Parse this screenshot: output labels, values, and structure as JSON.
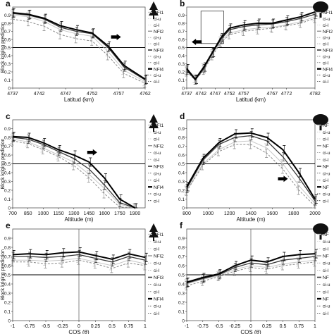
{
  "colors": {
    "nfi1": "#c8c8c8",
    "nfi2": "#8a8a8a",
    "nfi3": "#3a3a3a",
    "nfi4": "#000000",
    "threshold": "#000000",
    "frame": "#555555"
  },
  "chart_data": [
    {
      "panel": "a",
      "type": "line",
      "icon": "conifer-tree-icon",
      "xlabel": "Latitud (km)",
      "ylabel": "Block kriging prediction",
      "xlim": [
        4737,
        4762
      ],
      "ylim": [
        0,
        1
      ],
      "xticks": [
        "4737",
        "4742",
        "4747",
        "4752",
        "4757",
        "4762"
      ],
      "yticks": [
        "0",
        "0.1",
        "0.2",
        "0.3",
        "0.4",
        "0.5",
        "0.6",
        "0.7",
        "0.8",
        "0.9"
      ],
      "threshold": 0.5,
      "arrow": {
        "x": 4756.5,
        "y": 0.63,
        "dir": "right"
      },
      "x": [
        4737,
        4740,
        4743,
        4746,
        4749,
        4752,
        4755,
        4758,
        4762
      ],
      "series": [
        {
          "name": "NFI1",
          "values": [
            0.9,
            0.88,
            0.82,
            0.72,
            0.67,
            0.64,
            0.45,
            0.22,
            0.08
          ]
        },
        {
          "name": "NFI2",
          "values": [
            0.85,
            0.82,
            0.76,
            0.66,
            0.61,
            0.58,
            0.4,
            0.18,
            0.06
          ]
        },
        {
          "name": "NFI3",
          "values": [
            0.92,
            0.9,
            0.85,
            0.75,
            0.7,
            0.67,
            0.5,
            0.26,
            0.1
          ]
        },
        {
          "name": "NFI4",
          "values": [
            0.93,
            0.91,
            0.86,
            0.77,
            0.72,
            0.68,
            0.52,
            0.28,
            0.11
          ]
        }
      ],
      "legend": [
        "NFI1",
        "ci-u",
        "ci-l",
        "NFI2",
        "ci-u",
        "ci-l",
        "NFI3",
        "ci-u",
        "ci-l",
        "NFI4",
        "ci-u",
        "ci-l"
      ]
    },
    {
      "panel": "b",
      "type": "line",
      "icon": "broadleaf-tree-icon",
      "xlabel": "Latitud (km)",
      "ylabel": "",
      "xlim": [
        4737,
        4782
      ],
      "ylim": [
        0,
        1
      ],
      "xticks": [
        "4737",
        "4742",
        "4747",
        "4752",
        "4757",
        "4767",
        "4772",
        "4782"
      ],
      "yticks": [
        "0",
        "0.1",
        "0.2",
        "0.3",
        "0.4",
        "0.5",
        "0.6",
        "0.7",
        "0.8",
        "0.9"
      ],
      "threshold": 0.5,
      "arrow": {
        "x": 4740.5,
        "y": 0.57,
        "dir": "left"
      },
      "zoom_box": {
        "x": [
          4742,
          4750
        ],
        "y": [
          0.55,
          0.95
        ]
      },
      "x": [
        4737,
        4740,
        4743,
        4746,
        4749,
        4752,
        4757,
        4762,
        4767,
        4772,
        4777,
        4782
      ],
      "series": [
        {
          "name": "NFI1",
          "values": [
            0.22,
            0.12,
            0.25,
            0.42,
            0.58,
            0.68,
            0.72,
            0.74,
            0.75,
            0.78,
            0.82,
            0.88
          ]
        },
        {
          "name": "NFI2",
          "values": [
            0.2,
            0.1,
            0.22,
            0.4,
            0.56,
            0.66,
            0.7,
            0.72,
            0.74,
            0.77,
            0.8,
            0.86
          ]
        },
        {
          "name": "NFI3",
          "values": [
            0.22,
            0.1,
            0.24,
            0.43,
            0.6,
            0.72,
            0.76,
            0.78,
            0.79,
            0.82,
            0.86,
            0.91
          ]
        },
        {
          "name": "NFI4",
          "values": [
            0.24,
            0.11,
            0.26,
            0.44,
            0.62,
            0.74,
            0.78,
            0.8,
            0.8,
            0.84,
            0.88,
            0.94
          ]
        }
      ],
      "legend": [
        "NFI1",
        "ci-u",
        "ci-l",
        "NFI2",
        "ci-u",
        "ci-l",
        "NFI3",
        "ci-u",
        "ci-l",
        "NFI4",
        "ci-u",
        "ci-l"
      ]
    },
    {
      "panel": "c",
      "type": "line",
      "icon": "conifer-tree-icon",
      "xlabel": "Altitude (m)",
      "ylabel": "Block kriging prediction",
      "xlim": [
        700,
        2000
      ],
      "ylim": [
        0,
        1
      ],
      "xticks": [
        "700",
        "850",
        "1000",
        "1150",
        "1300",
        "1450",
        "1600",
        "1750",
        "1900"
      ],
      "yticks": [
        "0",
        "0.1",
        "0.2",
        "0.3",
        "0.4",
        "0.5",
        "0.6",
        "0.7",
        "0.8",
        "0.9"
      ],
      "threshold": 0.5,
      "arrow": {
        "x": 1480,
        "y": 0.63,
        "dir": "right"
      },
      "x": [
        700,
        850,
        1000,
        1150,
        1300,
        1450,
        1600,
        1750,
        1900
      ],
      "series": [
        {
          "name": "NFI1",
          "values": [
            0.78,
            0.75,
            0.68,
            0.6,
            0.52,
            0.38,
            0.22,
            0.04,
            0.0
          ]
        },
        {
          "name": "NFI2",
          "values": [
            0.76,
            0.73,
            0.66,
            0.58,
            0.48,
            0.34,
            0.16,
            0.01,
            0.0
          ]
        },
        {
          "name": "NFI3",
          "values": [
            0.8,
            0.78,
            0.72,
            0.64,
            0.56,
            0.44,
            0.26,
            0.06,
            0.0
          ]
        },
        {
          "name": "NFI4",
          "values": [
            0.81,
            0.8,
            0.74,
            0.66,
            0.6,
            0.52,
            0.34,
            0.1,
            0.0
          ]
        }
      ],
      "legend": [
        "NFI1",
        "ci-u",
        "ci-l",
        "NFI2",
        "ci-u",
        "ci-l",
        "NFI3",
        "ci-u",
        "ci-l",
        "NFI4",
        "ci-u",
        "ci-l"
      ]
    },
    {
      "panel": "d",
      "type": "line",
      "icon": "broadleaf-tree-icon",
      "xlabel": "Altitude (m)",
      "ylabel": "",
      "xlim": [
        800,
        2000
      ],
      "ylim": [
        0,
        1
      ],
      "xticks": [
        "800",
        "1000",
        "1200",
        "1400",
        "1600",
        "1800",
        "2000"
      ],
      "yticks": [
        "0",
        "0.1",
        "0.2",
        "0.3",
        "0.4",
        "0.5",
        "0.6",
        "0.7",
        "0.8",
        "0.9"
      ],
      "threshold": 0.5,
      "arrow": {
        "x": 1700,
        "y": 0.33,
        "dir": "right"
      },
      "x": [
        800,
        950,
        1100,
        1250,
        1400,
        1550,
        1700,
        1850,
        2000
      ],
      "series": [
        {
          "name": "NFI1",
          "values": [
            0.2,
            0.5,
            0.66,
            0.75,
            0.76,
            0.68,
            0.5,
            0.25,
            0.05
          ]
        },
        {
          "name": "NFI2",
          "values": [
            0.19,
            0.48,
            0.64,
            0.72,
            0.72,
            0.62,
            0.44,
            0.2,
            0.02
          ]
        },
        {
          "name": "NFI3",
          "values": [
            0.22,
            0.54,
            0.72,
            0.8,
            0.82,
            0.76,
            0.58,
            0.34,
            0.08
          ]
        },
        {
          "name": "NFI4",
          "values": [
            0.24,
            0.56,
            0.74,
            0.84,
            0.85,
            0.8,
            0.66,
            0.4,
            0.1
          ]
        }
      ],
      "legend": [
        "NF",
        "ci-u",
        "ci-l",
        "NF",
        "ci-u",
        "ci-l",
        "NF",
        "ci-u",
        "ci-l",
        "NF",
        "ci-u",
        "ci-l"
      ]
    },
    {
      "panel": "e",
      "type": "line",
      "icon": "conifer-tree-icon",
      "xlabel": "COS (θ)",
      "ylabel": "Block kriging prediction",
      "xlim": [
        -1,
        1
      ],
      "ylim": [
        0,
        1
      ],
      "xticks": [
        "-1",
        "-0.75",
        "-0.5",
        "-0.25",
        "0",
        "0.25",
        "0.5",
        "0.75",
        "1"
      ],
      "yticks": [
        "0",
        "0.1",
        "0.2",
        "0.3",
        "0.4",
        "0.5",
        "0.6",
        "0.7",
        "0.8",
        "0.9"
      ],
      "threshold": 0.5,
      "vline": 0,
      "x": [
        -1,
        -0.75,
        -0.5,
        -0.25,
        0,
        0.25,
        0.5,
        0.75,
        1
      ],
      "series": [
        {
          "name": "NFI1",
          "values": [
            0.66,
            0.66,
            0.65,
            0.66,
            0.68,
            0.64,
            0.6,
            0.66,
            0.62
          ]
        },
        {
          "name": "NFI2",
          "values": [
            0.64,
            0.64,
            0.62,
            0.63,
            0.66,
            0.62,
            0.57,
            0.63,
            0.6
          ]
        },
        {
          "name": "NFI3",
          "values": [
            0.7,
            0.7,
            0.69,
            0.7,
            0.72,
            0.68,
            0.64,
            0.7,
            0.66
          ]
        },
        {
          "name": "NFI4",
          "values": [
            0.72,
            0.73,
            0.72,
            0.74,
            0.75,
            0.71,
            0.67,
            0.73,
            0.69
          ]
        }
      ],
      "legend": [
        "NFI1",
        "ci-u",
        "ci-l",
        "NFI2",
        "ci-u",
        "ci-l",
        "NFI3",
        "ci-u",
        "ci-l",
        "NFI4",
        "ci-u",
        "ci-l"
      ]
    },
    {
      "panel": "f",
      "type": "line",
      "icon": "broadleaf-tree-icon",
      "xlabel": "COS (θ)",
      "ylabel": "",
      "xlim": [
        -1,
        1
      ],
      "ylim": [
        0,
        1
      ],
      "xticks": [
        "-1",
        "-0.75",
        "-0.5",
        "-0.25",
        "0",
        "0.25",
        "0.5",
        "0.75",
        "1"
      ],
      "yticks": [
        "0",
        "0.1",
        "0.2",
        "0.3",
        "0.4",
        "0.5",
        "0.6",
        "0.7",
        "0.8",
        "0.9"
      ],
      "threshold": 0.5,
      "vline": 0,
      "x": [
        -1,
        -0.75,
        -0.5,
        -0.25,
        0,
        0.25,
        0.5,
        0.75,
        1
      ],
      "series": [
        {
          "name": "NFI1",
          "values": [
            0.4,
            0.45,
            0.49,
            0.56,
            0.6,
            0.58,
            0.62,
            0.64,
            0.66
          ]
        },
        {
          "name": "NFI2",
          "values": [
            0.38,
            0.43,
            0.48,
            0.54,
            0.58,
            0.56,
            0.6,
            0.62,
            0.64
          ]
        },
        {
          "name": "NFI3",
          "values": [
            0.41,
            0.46,
            0.5,
            0.58,
            0.63,
            0.61,
            0.66,
            0.68,
            0.7
          ]
        },
        {
          "name": "NFI4",
          "values": [
            0.42,
            0.47,
            0.51,
            0.6,
            0.66,
            0.64,
            0.7,
            0.72,
            0.73
          ]
        }
      ],
      "legend": [
        "NF",
        "ci-u",
        "ci-l",
        "NF",
        "ci-u",
        "ci-l",
        "NF",
        "ci-u",
        "ci-l",
        "NF",
        "ci-u",
        "ci-l"
      ]
    }
  ]
}
